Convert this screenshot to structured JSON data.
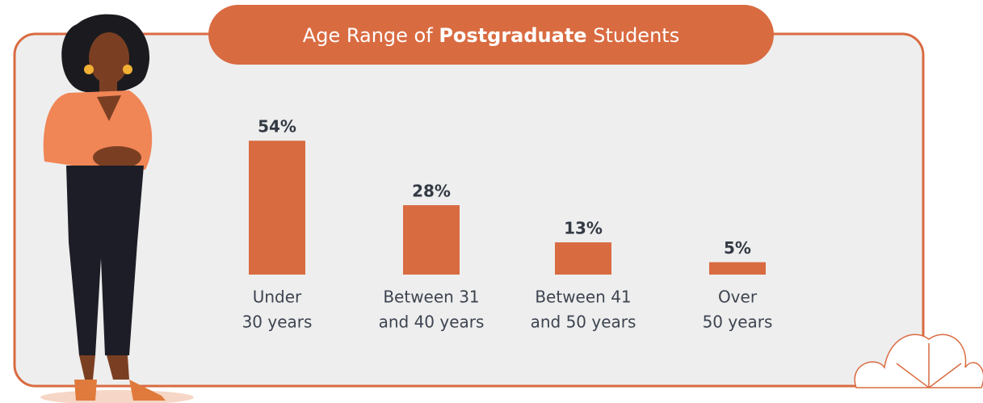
{
  "chart_data": {
    "type": "bar",
    "title": {
      "before": "Age Range of",
      "emphasis": "Postgraduate",
      "after": "Students"
    },
    "categories": [
      [
        "Under",
        "30 years"
      ],
      [
        "Between 31",
        "and 40 years"
      ],
      [
        "Between 41",
        "and 50 years"
      ],
      [
        "Over",
        "50 years"
      ]
    ],
    "values": [
      54,
      28,
      13,
      5
    ],
    "value_labels": [
      "54%",
      "28%",
      "13%",
      "5%"
    ],
    "color": "#d96b41"
  }
}
